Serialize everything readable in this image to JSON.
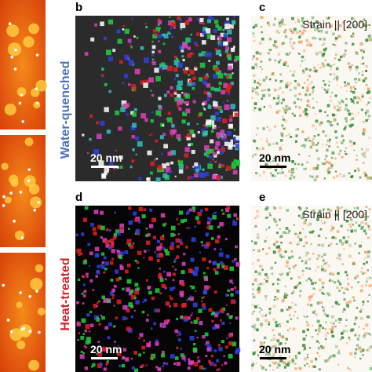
{
  "row_labels": [
    "Water-quenched",
    "Heat-treated"
  ],
  "panels": [
    {
      "letter": "b",
      "scale_bar": "20 nm"
    },
    {
      "letter": "c",
      "annotation": "Strain || [200]",
      "scale_bar": "20 nm"
    },
    {
      "letter": "d",
      "scale_bar": "20 nm"
    },
    {
      "letter": "e",
      "annotation": "Strain || [200]",
      "scale_bar": "20 nm"
    }
  ]
}
